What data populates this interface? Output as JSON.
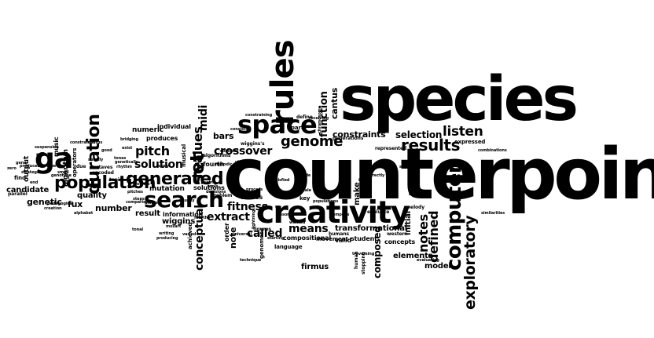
{
  "words": {
    "counterpoint": "counterpoint",
    "species": "species",
    "creativity": "creativity",
    "rules": "rules",
    "space": "space",
    "search": "search",
    "population": "population",
    "generated": "generated",
    "ga": "ga",
    "results": "results",
    "genome": "genome",
    "duration": "duration",
    "pitch": "pitch",
    "solution": "solution",
    "computer": "computer",
    "exploratory": "exploratory",
    "listen": "listen",
    "selection": "selection",
    "fitness": "fitness",
    "crossover": "crossover",
    "extract": "extract",
    "set": "set",
    "values": "values",
    "midi": "midi",
    "called": "called",
    "means": "means",
    "notes": "notes",
    "defined": "defined",
    "function": "function",
    "cantus": "cantus",
    "constraints": "constraints",
    "mutation": "mutation",
    "genetic": "genetic",
    "candidate": "candidate",
    "number": "number",
    "quality": "quality",
    "fux": "fux",
    "bars": "bars",
    "conceptual": "conceptual",
    "transformational": "transformational",
    "elements": "elements",
    "model": "model",
    "firmus": "firmus",
    "compositional": "compositional",
    "composed": "composed",
    "concepts": "concepts",
    "valid": "valid",
    "student": "student",
    "language": "language",
    "result": "result",
    "information": "information",
    "produces": "produces",
    "numeric": "numeric",
    "individual": "individual",
    "wiggins": "wiggins",
    "solutions": "solutions",
    "alleles": "alleles",
    "evaluate": "evaluate",
    "initial": "initial",
    "make": "make",
    "key": "key",
    "note": "note",
    "order": "order",
    "fourth": "fourth",
    "expressed": "expressed",
    "part": "part",
    "movement": "movement",
    "western": "western",
    "melody": "melody",
    "represented": "represented",
    "generations": "generations",
    "music": "music",
    "output": "output",
    "algorithm": "algorithm",
    "operators": "operators",
    "points": "points",
    "find": "find",
    "parallel": "parallel",
    "alphabet": "alphabet",
    "octaves": "octaves",
    "tonic": "tonic",
    "encoded": "encoded",
    "pitches": "pitches",
    "musical": "musical",
    "genomes": "genomes",
    "technique": "technique",
    "wiggins_s": "wiggins's",
    "problem": "problem",
    "figures": "figures",
    "humans": "humans",
    "define": "define",
    "constraining": "constraining",
    "mozart": "mozart",
    "human": "human",
    "stopping": "stopping",
    "forbidden": "forbidden",
    "achieved": "achieved",
    "algorithms": "algorithms",
    "consider": "consider",
    "chromosome": "chromosome",
    "populations": "populations",
    "lightning": "lightning",
    "universal": "universal",
    "pedagogical": "pedagogical",
    "creation": "creation",
    "suspension": "suspension",
    "constrained": "constrained",
    "genotype": "genotype",
    "comparison": "comparison",
    "similarities": "similarities",
    "combinations": "combinations",
    "evaluating": "evaluating",
    "traversing": "traversing",
    "static": "static",
    "based": "based",
    "consists": "consists",
    "receiving": "receiving",
    "compose": "compose",
    "correctly": "correctly",
    "scale": "scale",
    "metric": "metric",
    "melodic": "melodic",
    "decisions": "decisions",
    "dissonance": "dissonance",
    "mode": "mode",
    "inside": "inside",
    "apply": "apply",
    "exist": "exist",
    "viewed": "viewed",
    "wanted": "wanted",
    "satisfied": "satisfied",
    "eighth": "eighth",
    "bridging": "bridging",
    "shortly": "shortly",
    "starting": "starting",
    "varied": "varied",
    "produced": "produced",
    "unlike": "unlike",
    "steps": "steps",
    "rhythm": "rhythm",
    "genetically": "genetically",
    "strategies": "strategies",
    "gene": "gene",
    "small": "small",
    "zero": "zero",
    "type": "type",
    "good": "good",
    "cantus_small": "cantus",
    "sounds": "sounds",
    "due": "due",
    "end": "end",
    "rq": "rq",
    "usually": "usually",
    "process": "process",
    "writing": "writing",
    "fourths": "fourths",
    "producing": "producing",
    "tools": "tools",
    "tones": "tones",
    "tonal": "tonal"
  }
}
